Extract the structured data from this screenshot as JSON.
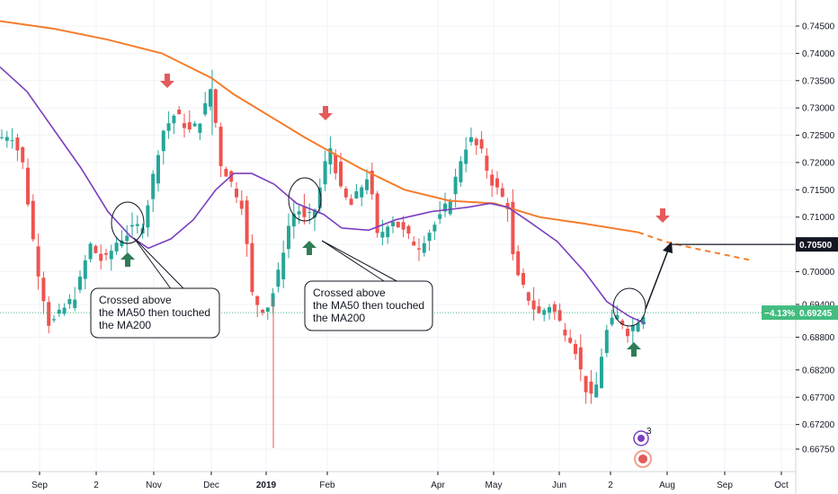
{
  "chart_data": {
    "type": "candlestick",
    "title": "",
    "y_ticks": [
      "0.74500",
      "0.74000",
      "0.73500",
      "0.73000",
      "0.72500",
      "0.72000",
      "0.71500",
      "0.71000",
      "0.70500",
      "0.70000",
      "0.69400",
      "0.68800",
      "0.68200",
      "0.67700",
      "0.67200",
      "0.66750"
    ],
    "y_tick_values": [
      0.745,
      0.74,
      0.735,
      0.73,
      0.725,
      0.72,
      0.715,
      0.71,
      0.705,
      0.7,
      0.694,
      0.688,
      0.682,
      0.677,
      0.672,
      0.6675
    ],
    "x_ticks": [
      "Sep",
      "2",
      "Nov",
      "Dec",
      "2019",
      "Feb",
      "Apr",
      "May",
      "Jun",
      "2",
      "Aug",
      "Sep",
      "Oct"
    ],
    "ylim": [
      0.6655,
      0.7475
    ],
    "grid": true,
    "price_tags": [
      {
        "label": "0.70500",
        "value": 0.705,
        "style": "black"
      },
      {
        "label": "−4.13%",
        "value": 0.6925,
        "style": "green-change"
      },
      {
        "label": "0.69245",
        "value": 0.6925,
        "style": "green"
      }
    ],
    "ma200": [
      {
        "x": 0,
        "y": 0.7459
      },
      {
        "x": 60,
        "y": 0.7445
      },
      {
        "x": 120,
        "y": 0.7425
      },
      {
        "x": 180,
        "y": 0.74
      },
      {
        "x": 235,
        "y": 0.7355
      },
      {
        "x": 260,
        "y": 0.7325
      },
      {
        "x": 300,
        "y": 0.7285
      },
      {
        "x": 340,
        "y": 0.7245
      },
      {
        "x": 400,
        "y": 0.719
      },
      {
        "x": 450,
        "y": 0.715
      },
      {
        "x": 500,
        "y": 0.713
      },
      {
        "x": 550,
        "y": 0.7125
      },
      {
        "x": 600,
        "y": 0.71
      },
      {
        "x": 650,
        "y": 0.7088
      },
      {
        "x": 710,
        "y": 0.7072
      }
    ],
    "ma200_projection": [
      {
        "x": 710,
        "y": 0.7072
      },
      {
        "x": 740,
        "y": 0.7055
      },
      {
        "x": 780,
        "y": 0.704
      },
      {
        "x": 838,
        "y": 0.702
      }
    ],
    "ma50": [
      {
        "x": 0,
        "y": 0.7375
      },
      {
        "x": 30,
        "y": 0.733
      },
      {
        "x": 60,
        "y": 0.726
      },
      {
        "x": 90,
        "y": 0.719
      },
      {
        "x": 120,
        "y": 0.711
      },
      {
        "x": 145,
        "y": 0.7065
      },
      {
        "x": 165,
        "y": 0.7043
      },
      {
        "x": 190,
        "y": 0.706
      },
      {
        "x": 215,
        "y": 0.7095
      },
      {
        "x": 240,
        "y": 0.715
      },
      {
        "x": 260,
        "y": 0.718
      },
      {
        "x": 280,
        "y": 0.718
      },
      {
        "x": 305,
        "y": 0.716
      },
      {
        "x": 330,
        "y": 0.7125
      },
      {
        "x": 360,
        "y": 0.7105
      },
      {
        "x": 380,
        "y": 0.708
      },
      {
        "x": 410,
        "y": 0.7076
      },
      {
        "x": 440,
        "y": 0.7095
      },
      {
        "x": 480,
        "y": 0.711
      },
      {
        "x": 520,
        "y": 0.7118
      },
      {
        "x": 545,
        "y": 0.7125
      },
      {
        "x": 565,
        "y": 0.7118
      },
      {
        "x": 590,
        "y": 0.709
      },
      {
        "x": 620,
        "y": 0.7055
      },
      {
        "x": 650,
        "y": 0.7
      },
      {
        "x": 675,
        "y": 0.6945
      },
      {
        "x": 700,
        "y": 0.6918
      },
      {
        "x": 718,
        "y": 0.6905
      }
    ],
    "annotations": {
      "callout_1": [
        "Crossed above",
        "the MA50 then touched",
        "the MA200"
      ],
      "callout_2": [
        "Crossed above",
        "the MA50 then touched",
        "the MA200"
      ],
      "projection_target": "0.70500",
      "event_badge_count": "3"
    },
    "colors": {
      "bull": "#26a69a",
      "bear": "#ef5350",
      "ma200": "#f57c2b",
      "ma50": "#7b3fbf",
      "up_arrow": "#2e7d57",
      "down_arrow": "#e55a5a",
      "current_price": "#42bd7f"
    }
  }
}
